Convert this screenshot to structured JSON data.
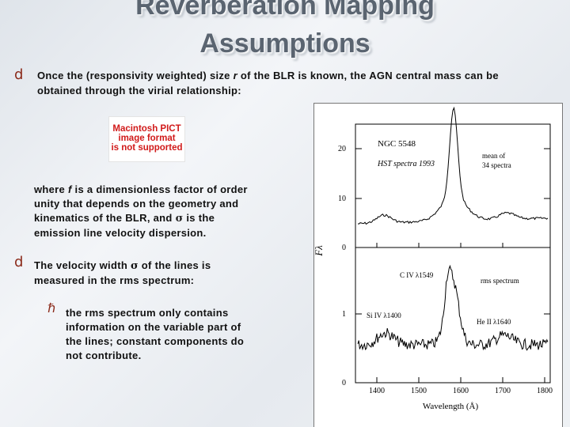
{
  "slide": {
    "title_line1": "Reverberation Mapping",
    "title_line2": "Assumptions",
    "bullet1": {
      "glyph": "d",
      "line1_pre": "Once the (responsivity weighted) size ",
      "line1_var": "r",
      "line1_post": " of the BLR is known, the AGN central mass can be",
      "line2": "obtained through the virial relationship:"
    },
    "pict_placeholder": {
      "line1": "Macintosh PICT",
      "line2": "image format",
      "line3": "is not supported"
    },
    "para": {
      "line1_pre": "where ",
      "line1_var": "f",
      "line1_post": " is a dimensionless factor of order",
      "line2": "unity that depends on the geometry and",
      "line3_pre": "kinematics of the BLR, and ",
      "line3_sym": "σ",
      "line3_post": " is the",
      "line4": "emission line velocity dispersion."
    },
    "bullet2": {
      "glyph": "d",
      "line1_pre": "The velocity width ",
      "line1_sym": "σ",
      "line1_post": " of the lines is",
      "line2": "measured in the rms spectrum:"
    },
    "subbullet": {
      "glyph": "ℏ",
      "line1": "the rms spectrum only contains",
      "line2": "information on the variable part of",
      "line3": "the lines; constant components do",
      "line4": "not contribute."
    }
  },
  "figure": {
    "top_panel": {
      "object": "NGC 5548",
      "subtitle": "HST spectra 1993",
      "note_line1": "mean of",
      "note_line2": "34 spectra",
      "y_ticks": [
        "20",
        "10",
        "0"
      ]
    },
    "bottom_panel": {
      "label_civ": "C IV λ1549",
      "label_rms": "rms spectrum",
      "label_siiv": "Si IV λ1400",
      "label_heii": "He II λ1640",
      "y_ticks": [
        "1",
        "0"
      ]
    },
    "y_axis_label": "Fλ",
    "x_ticks": [
      "1400",
      "1500",
      "1600",
      "1700",
      "1800"
    ],
    "x_axis_label": "Wavelength (Å)"
  }
}
